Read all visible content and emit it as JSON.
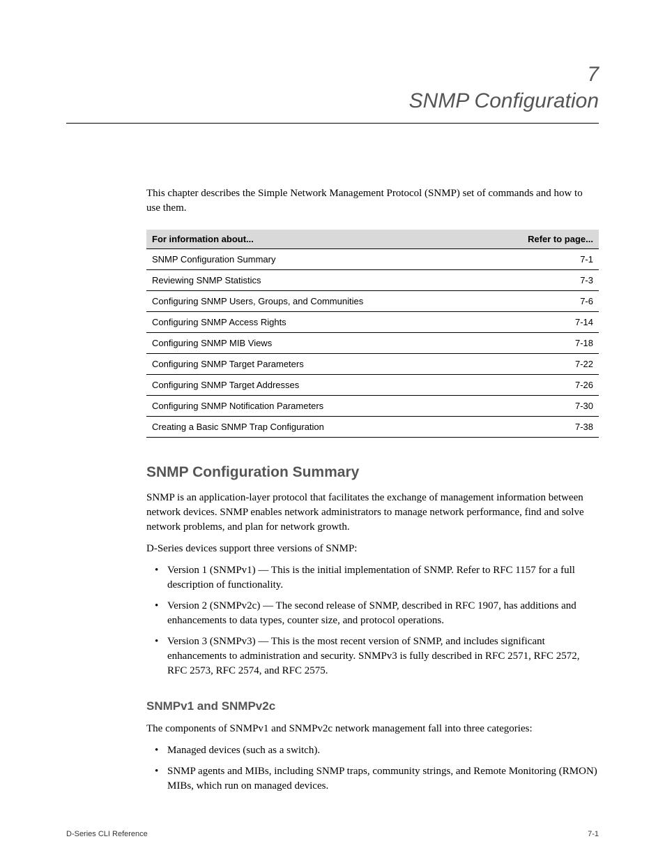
{
  "chapter": {
    "label": "7",
    "title": "SNMP Configuration"
  },
  "intro": "This chapter describes the Simple Network Management Protocol (SNMP) set of commands and how to use them.",
  "toc": {
    "header_left": "For information about...",
    "header_right": "Refer to page...",
    "rows": [
      {
        "topic": "SNMP Configuration Summary",
        "page": "7-1"
      },
      {
        "topic": "Reviewing SNMP Statistics",
        "page": "7-3"
      },
      {
        "topic": "Configuring SNMP Users, Groups, and Communities",
        "page": "7-6"
      },
      {
        "topic": "Configuring SNMP Access Rights",
        "page": "7-14"
      },
      {
        "topic": "Configuring SNMP MIB Views",
        "page": "7-18"
      },
      {
        "topic": "Configuring SNMP Target Parameters",
        "page": "7-22"
      },
      {
        "topic": "Configuring SNMP Target Addresses",
        "page": "7-26"
      },
      {
        "topic": "Configuring SNMP Notification Parameters",
        "page": "7-30"
      },
      {
        "topic": "Creating a Basic SNMP Trap Configuration",
        "page": "7-38"
      }
    ]
  },
  "section1": {
    "title": "SNMP Configuration Summary",
    "p1": "SNMP is an application-layer protocol that facilitates the exchange of management information between network devices. SNMP enables network administrators to manage network performance, find and solve network problems, and plan for network growth.",
    "p2": "D-Series devices support three versions of SNMP:",
    "bullets": [
      "Version 1 (SNMPv1) — This is the initial implementation of SNMP. Refer to RFC 1157 for a full description of functionality.",
      "Version 2 (SNMPv2c) — The second release of SNMP, described in RFC 1907, has additions and enhancements to data types, counter size, and protocol operations.",
      "Version 3 (SNMPv3) — This is the most recent version of SNMP, and includes significant enhancements to administration and security. SNMPv3 is fully described in RFC 2571, RFC 2572, RFC 2573, RFC 2574, and RFC 2575."
    ]
  },
  "subsection1": {
    "title": "SNMPv1 and SNMPv2c",
    "p1": "The components of SNMPv1 and SNMPv2c network management fall into three categories:",
    "bullets": [
      "Managed devices (such as a switch).",
      "SNMP agents and MIBs, including SNMP traps, community strings, and Remote Monitoring (RMON) MIBs, which run on managed devices."
    ]
  },
  "footer": {
    "left": "D-Series CLI Reference",
    "right": "7-1"
  }
}
